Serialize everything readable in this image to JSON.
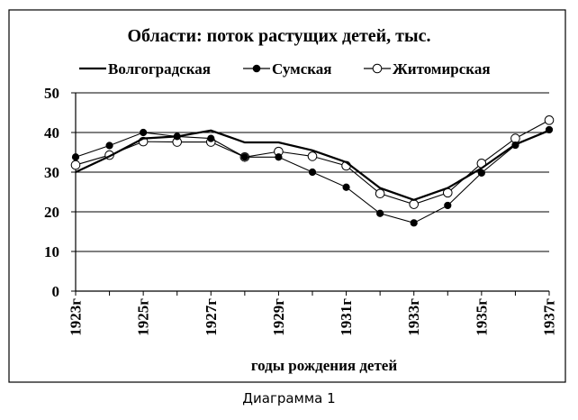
{
  "caption": "Диаграмма 1",
  "chart_data": {
    "type": "line",
    "title": "Области: поток растущих детей, тыс.",
    "xlabel": "годы рождения детей",
    "ylabel": "",
    "x": [
      1923,
      1924,
      1925,
      1926,
      1927,
      1928,
      1929,
      1930,
      1931,
      1932,
      1933,
      1934,
      1935,
      1936,
      1937
    ],
    "x_tick_labels": [
      "1923г",
      "1925г",
      "1927г",
      "1929г",
      "1931г",
      "1933г",
      "1935г",
      "1937г"
    ],
    "x_tick_values": [
      1923,
      1925,
      1927,
      1929,
      1931,
      1933,
      1935,
      1937
    ],
    "y_ticks": [
      0,
      10,
      20,
      30,
      40,
      50
    ],
    "ylim": [
      0,
      50
    ],
    "grid": "horizontal",
    "legend_position": "top",
    "series": [
      {
        "name": "Волгоградская",
        "marker": "none",
        "color": "#000000",
        "values": [
          30,
          34,
          38.5,
          39,
          40.5,
          37.5,
          37.5,
          35.5,
          32.5,
          26,
          23,
          26,
          31,
          37,
          40.5
        ]
      },
      {
        "name": "Сумская",
        "marker": "filled-circle",
        "color": "#000000",
        "values": [
          33.8,
          36.7,
          40,
          39,
          38.5,
          33.8,
          33.8,
          30,
          26.2,
          19.6,
          17.2,
          21.6,
          29.8,
          36.8,
          40.7
        ]
      },
      {
        "name": "Житомирская",
        "marker": "open-circle",
        "color": "#000000",
        "values": [
          31.8,
          34.3,
          37.7,
          37.6,
          37.6,
          33.8,
          35.2,
          34,
          31.6,
          24.6,
          21.9,
          24.8,
          32.2,
          38.5,
          43.1
        ]
      }
    ]
  }
}
